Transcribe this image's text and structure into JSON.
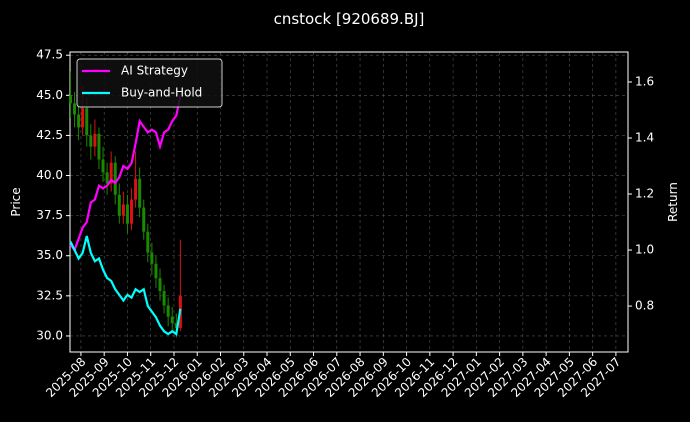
{
  "chart_data": {
    "type": "candlestick",
    "title": "cnstock [920689.BJ]",
    "y_label": "Price",
    "y2_label": "Return",
    "x": [
      -0.45,
      -0.275,
      -0.1,
      0.075,
      0.25,
      0.425,
      0.6,
      0.775,
      0.95,
      1.125,
      1.3,
      1.475,
      1.65,
      1.825,
      2.0,
      2.175,
      2.35,
      2.525,
      2.7,
      2.875,
      3.05,
      3.225,
      3.4,
      3.575,
      3.75,
      3.925,
      4.1,
      4.275
    ],
    "candles": {
      "open": [
        45.0,
        44.5,
        43.8,
        43.0,
        44.2,
        42.5,
        41.8,
        42.6,
        41.0,
        40.2,
        39.5,
        40.8,
        38.8,
        37.5,
        38.2,
        37.0,
        38.5,
        39.8,
        38.0,
        36.5,
        35.2,
        34.5,
        33.6,
        32.8,
        31.9,
        31.2,
        30.8,
        30.5
      ],
      "high": [
        46.5,
        45.2,
        44.5,
        45.6,
        44.8,
        43.2,
        43.5,
        43.0,
        41.8,
        40.8,
        41.5,
        41.2,
        39.5,
        39.0,
        38.8,
        39.2,
        41.5,
        40.5,
        38.5,
        37.0,
        35.8,
        35.0,
        34.2,
        33.2,
        32.4,
        31.8,
        31.4,
        36.0
      ],
      "low": [
        43.6,
        43.0,
        42.2,
        42.5,
        41.8,
        41.0,
        41.2,
        40.4,
        39.6,
        38.8,
        39.0,
        38.2,
        37.0,
        37.0,
        36.4,
        36.6,
        38.0,
        37.4,
        36.0,
        34.6,
        33.8,
        33.0,
        32.2,
        31.4,
        30.6,
        30.2,
        29.9,
        30.3
      ],
      "close": [
        44.5,
        43.8,
        43.0,
        44.2,
        42.5,
        41.8,
        42.6,
        41.0,
        40.2,
        39.5,
        40.8,
        38.8,
        37.5,
        38.2,
        37.0,
        38.5,
        39.8,
        38.0,
        36.5,
        35.2,
        34.5,
        33.6,
        32.8,
        31.9,
        31.2,
        30.8,
        30.5,
        32.5
      ],
      "up_color": "#dd1111",
      "down_color": "#1a8a00"
    },
    "series": [
      {
        "name": "AI Strategy",
        "color": "#ff00ff",
        "axis": "y2",
        "values": [
          1.02,
          1.0,
          1.04,
          1.08,
          1.1,
          1.17,
          1.18,
          1.23,
          1.22,
          1.23,
          1.25,
          1.24,
          1.26,
          1.3,
          1.29,
          1.31,
          1.38,
          1.46,
          1.44,
          1.42,
          1.43,
          1.42,
          1.37,
          1.42,
          1.43,
          1.46,
          1.48,
          1.55
        ]
      },
      {
        "name": "Buy-and-Hold",
        "color": "#00ffff",
        "axis": "y2",
        "values": [
          1.03,
          1.0,
          0.97,
          0.99,
          1.05,
          0.99,
          0.96,
          0.97,
          0.93,
          0.9,
          0.89,
          0.86,
          0.84,
          0.82,
          0.84,
          0.83,
          0.86,
          0.85,
          0.86,
          0.8,
          0.78,
          0.76,
          0.73,
          0.71,
          0.7,
          0.71,
          0.7,
          0.79
        ]
      }
    ],
    "xlim": [
      -0.47,
      23.52
    ],
    "xticks": [
      {
        "value": 0,
        "label": "2025-08"
      },
      {
        "value": 1,
        "label": "2025-09"
      },
      {
        "value": 2,
        "label": "2025-10"
      },
      {
        "value": 3,
        "label": "2025-11"
      },
      {
        "value": 4,
        "label": "2025-12"
      },
      {
        "value": 5,
        "label": "2026-01"
      },
      {
        "value": 6,
        "label": "2026-02"
      },
      {
        "value": 7,
        "label": "2026-03"
      },
      {
        "value": 8,
        "label": "2026-04"
      },
      {
        "value": 9,
        "label": "2026-05"
      },
      {
        "value": 10,
        "label": "2026-06"
      },
      {
        "value": 11,
        "label": "2026-07"
      },
      {
        "value": 12,
        "label": "2026-08"
      },
      {
        "value": 13,
        "label": "2026-09"
      },
      {
        "value": 14,
        "label": "2026-10"
      },
      {
        "value": 15,
        "label": "2026-11"
      },
      {
        "value": 16,
        "label": "2026-12"
      },
      {
        "value": 17,
        "label": "2027-01"
      },
      {
        "value": 18,
        "label": "2027-02"
      },
      {
        "value": 19,
        "label": "2027-03"
      },
      {
        "value": 20,
        "label": "2027-04"
      },
      {
        "value": 21,
        "label": "2027-05"
      },
      {
        "value": 22,
        "label": "2027-06"
      },
      {
        "value": 23,
        "label": "2027-07"
      }
    ],
    "ylim": [
      29.0,
      47.7
    ],
    "yticks": [
      {
        "value": 30,
        "label": "30.0"
      },
      32.5,
      {
        "value": 35,
        "label": "35.0"
      },
      37.5,
      {
        "value": 40,
        "label": "40.0"
      },
      42.5,
      {
        "value": 45,
        "label": "45.0"
      },
      47.5
    ],
    "y2lim": [
      0.636,
      1.707
    ],
    "y2ticks": [
      0.8,
      {
        "value": 1,
        "label": "1.0"
      },
      1.2,
      1.4,
      1.6
    ],
    "grid": true,
    "legend": "upper left"
  }
}
